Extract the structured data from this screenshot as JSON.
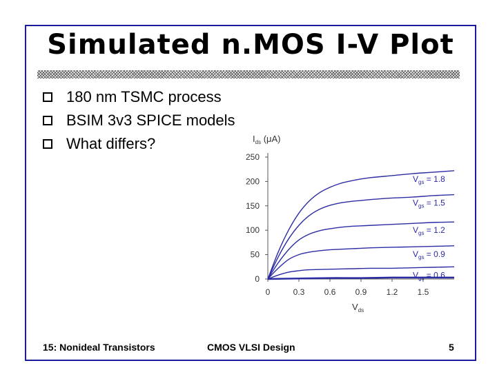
{
  "slide": {
    "title": "Simulated n.MOS I-V Plot",
    "bullets": [
      "180 nm TSMC process",
      "BSIM 3v3 SPICE models",
      "What differs?"
    ],
    "footer": {
      "left": "15: Nonideal Transistors",
      "center": "CMOS VLSI Design",
      "right": "5"
    },
    "colors": {
      "frame": "#1a1a9a",
      "curve": "#2b2ba3"
    }
  },
  "chart_data": {
    "type": "line",
    "ylabel": {
      "main": "I",
      "sub": "ds",
      "unit": " (μA)"
    },
    "xlabel": {
      "main": "V",
      "sub": "ds"
    },
    "xlim": [
      0,
      1.8
    ],
    "ylim": [
      0,
      250
    ],
    "xticks": [
      "0",
      "0.3",
      "0.6",
      "0.9",
      "1.2",
      "1.5"
    ],
    "yticks": [
      "250",
      "200",
      "150",
      "100",
      "50",
      "0"
    ],
    "grid": false,
    "series": [
      {
        "label_main": "V",
        "label_sub": "gs",
        "label_value": " = 1.8",
        "x": [
          0,
          0.1,
          0.2,
          0.3,
          0.4,
          0.5,
          0.6,
          0.7,
          0.8,
          0.9,
          1.0,
          1.2,
          1.4,
          1.6,
          1.8
        ],
        "y": [
          0,
          55,
          100,
          135,
          160,
          177,
          188,
          196,
          201,
          205,
          208,
          212,
          216,
          219,
          222
        ]
      },
      {
        "label_main": "V",
        "label_sub": "gs",
        "label_value": " = 1.5",
        "x": [
          0,
          0.1,
          0.2,
          0.3,
          0.4,
          0.5,
          0.6,
          0.7,
          0.8,
          0.9,
          1.0,
          1.2,
          1.4,
          1.6,
          1.8
        ],
        "y": [
          0,
          45,
          82,
          110,
          130,
          143,
          151,
          156,
          159,
          161,
          163,
          166,
          168,
          171,
          173
        ]
      },
      {
        "label_main": "V",
        "label_sub": "gs",
        "label_value": " = 1.2",
        "x": [
          0,
          0.1,
          0.2,
          0.3,
          0.4,
          0.5,
          0.6,
          0.7,
          0.8,
          0.9,
          1.0,
          1.2,
          1.4,
          1.6,
          1.8
        ],
        "y": [
          0,
          33,
          60,
          80,
          92,
          99,
          103,
          106,
          108,
          109,
          110,
          112,
          114,
          116,
          117
        ]
      },
      {
        "label_main": "V",
        "label_sub": "gs",
        "label_value": " = 0.9",
        "x": [
          0,
          0.1,
          0.2,
          0.3,
          0.4,
          0.5,
          0.6,
          0.7,
          0.8,
          0.9,
          1.0,
          1.2,
          1.4,
          1.6,
          1.8
        ],
        "y": [
          0,
          22,
          40,
          50,
          55,
          58,
          60,
          61,
          62,
          63,
          64,
          65,
          66,
          67,
          68
        ]
      },
      {
        "label_main": "V",
        "label_sub": "gs",
        "label_value": " = 0.6",
        "x": [
          0,
          0.1,
          0.2,
          0.3,
          0.4,
          0.6,
          0.8,
          1.0,
          1.2,
          1.4,
          1.6,
          1.8
        ],
        "y": [
          0,
          8,
          14,
          17,
          19,
          20,
          21,
          22,
          22,
          23,
          24,
          25
        ]
      },
      {
        "label_main": "",
        "label_sub": "",
        "label_value": "",
        "x": [
          0,
          0.3,
          0.6,
          0.9,
          1.2,
          1.5,
          1.8
        ],
        "y": [
          0,
          1,
          2,
          2,
          3,
          3,
          3
        ]
      }
    ]
  }
}
